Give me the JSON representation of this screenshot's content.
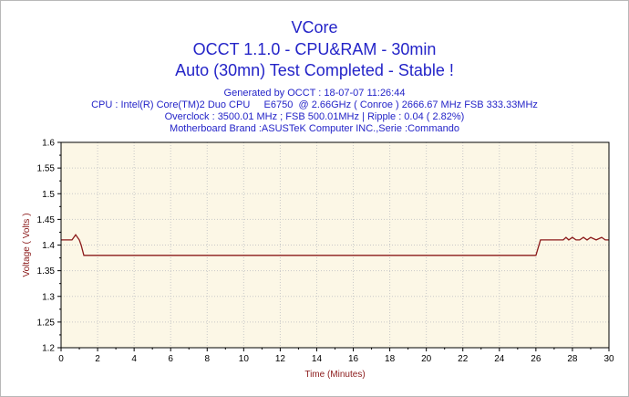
{
  "header": {
    "title": "VCore",
    "subtitle": "OCCT 1.1.0 - CPU&RAM - 30min",
    "status": "Auto (30mn) Test Completed - Stable !",
    "generated": "Generated by OCCT : 18-07-07 11:26:44",
    "cpu": "CPU : Intel(R) Core(TM)2 Duo CPU     E6750  @ 2.66GHz ( Conroe ) 2666.67 MHz FSB 333.33MHz",
    "overclock": "Overclock : 3500.01 MHz ; FSB 500.01MHz | Ripple : 0.04 ( 2.82%)",
    "motherboard": "Motherboard Brand :ASUSTeK Computer INC.,Serie :Commando"
  },
  "colors": {
    "plot_background": "#fcf7e6",
    "line": "#8b1a1a",
    "grid": "#c8c8c8",
    "title_text": "#2424c8",
    "axis_title": "#8b1a1a"
  },
  "chart_data": {
    "type": "line",
    "title": "VCore",
    "xlabel": "Time (Minutes)",
    "ylabel": "Voltage ( Volts )",
    "xlim": [
      0,
      30
    ],
    "ylim": [
      1.2,
      1.6
    ],
    "xticks": [
      "0",
      "2",
      "4",
      "6",
      "8",
      "10",
      "12",
      "14",
      "16",
      "18",
      "20",
      "22",
      "24",
      "26",
      "28",
      "30"
    ],
    "yticks": [
      "1.2",
      "1.25",
      "1.3",
      "1.35",
      "1.4",
      "1.45",
      "1.5",
      "1.55",
      "1.6"
    ],
    "grid": true,
    "series": [
      {
        "x": [
          0,
          0.6,
          0.8,
          1.0,
          1.1,
          1.25,
          26.0,
          26.25,
          27.5,
          27.65,
          27.8,
          28.0,
          28.2,
          28.4,
          28.6,
          28.8,
          29.0,
          29.3,
          29.6,
          29.8,
          30.0
        ],
        "y": [
          1.41,
          1.41,
          1.42,
          1.41,
          1.4,
          1.38,
          1.38,
          1.41,
          1.41,
          1.415,
          1.41,
          1.415,
          1.41,
          1.41,
          1.415,
          1.41,
          1.415,
          1.41,
          1.415,
          1.41,
          1.41
        ]
      }
    ]
  }
}
